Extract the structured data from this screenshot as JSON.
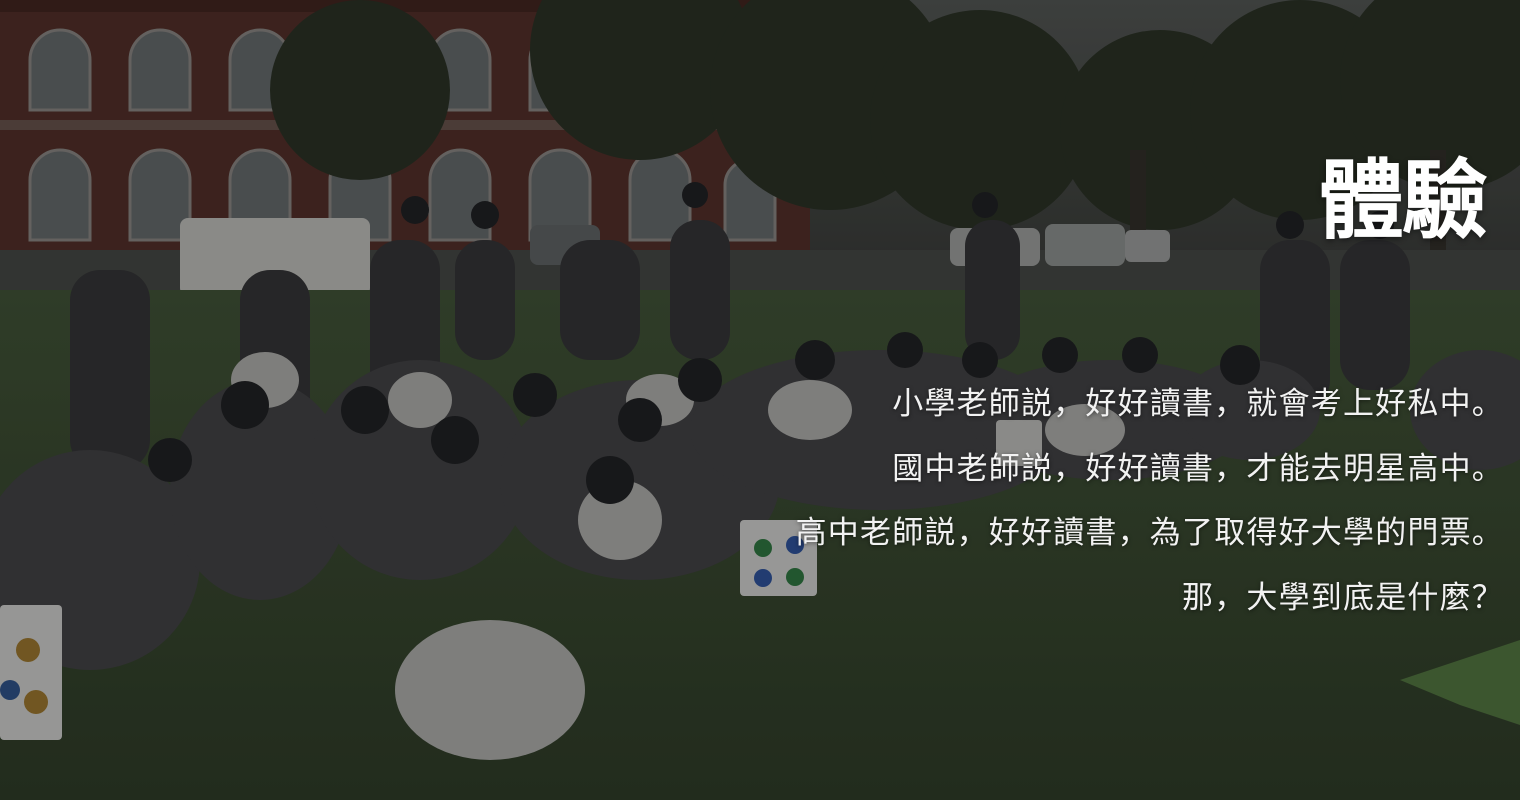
{
  "hero": {
    "title": "體驗",
    "lines": [
      "小學老師説，好好讀書，就會考上好私中。",
      "國中老師説，好好讀書，才能去明星高中。",
      "高中老師説，好好讀書，為了取得好大學的門票。",
      "那，大學到底是什麼？"
    ]
  }
}
